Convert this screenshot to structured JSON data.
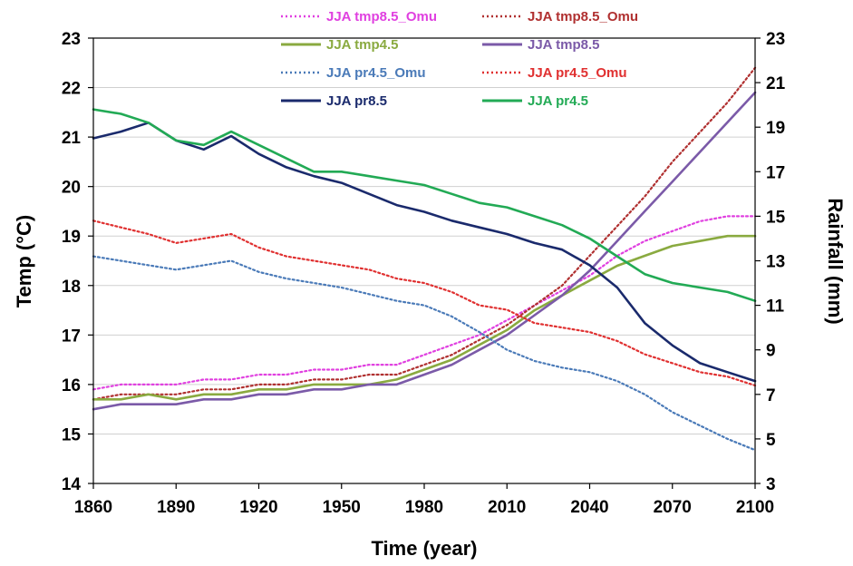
{
  "chart_data": {
    "type": "line",
    "title": "",
    "xlabel": "Time (year)",
    "ylabel_left": "Temp (°C)",
    "ylabel_right": "Rainfall (mm)",
    "xlim": [
      1860,
      2100
    ],
    "ylim_left": [
      14,
      23
    ],
    "ylim_right": [
      3,
      23
    ],
    "x_ticks": [
      1860,
      1890,
      1920,
      1950,
      1980,
      2010,
      2040,
      2070,
      2100
    ],
    "y_ticks_left": [
      14,
      15,
      16,
      17,
      18,
      19,
      20,
      21,
      22,
      23
    ],
    "y_ticks_right": [
      3,
      5,
      7,
      9,
      11,
      13,
      15,
      17,
      19,
      21,
      23
    ],
    "grid": "horizontal",
    "legend_position": "top",
    "x": [
      1860,
      1870,
      1880,
      1890,
      1900,
      1910,
      1920,
      1930,
      1940,
      1950,
      1960,
      1970,
      1980,
      1990,
      2000,
      2010,
      2020,
      2030,
      2040,
      2050,
      2060,
      2070,
      2080,
      2090,
      2100
    ],
    "series": [
      {
        "name": "JJA tmp8.5_Omu",
        "axis": "left",
        "color": "#e040e0",
        "dash": "dotted",
        "values": [
          15.9,
          16.0,
          16.0,
          16.0,
          16.1,
          16.1,
          16.2,
          16.2,
          16.3,
          16.3,
          16.4,
          16.4,
          16.6,
          16.8,
          17.0,
          17.3,
          17.6,
          17.9,
          18.2,
          18.6,
          18.9,
          19.1,
          19.3,
          19.4,
          19.4
        ]
      },
      {
        "name": "JJA tmp8.5_Omu",
        "axis": "left",
        "color": "#b03030",
        "dash": "dotted",
        "values": [
          15.7,
          15.8,
          15.8,
          15.8,
          15.9,
          15.9,
          16.0,
          16.0,
          16.1,
          16.1,
          16.2,
          16.2,
          16.4,
          16.6,
          16.9,
          17.2,
          17.6,
          18.0,
          18.6,
          19.2,
          19.8,
          20.5,
          21.1,
          21.7,
          22.4
        ]
      },
      {
        "name": "JJA tmp4.5",
        "axis": "left",
        "color": "#8aaa40",
        "dash": "solid",
        "values": [
          15.7,
          15.7,
          15.8,
          15.7,
          15.8,
          15.8,
          15.9,
          15.9,
          16.0,
          16.0,
          16.0,
          16.1,
          16.3,
          16.5,
          16.8,
          17.1,
          17.5,
          17.8,
          18.1,
          18.4,
          18.6,
          18.8,
          18.9,
          19.0,
          19.0
        ]
      },
      {
        "name": "JJA tmp8.5",
        "axis": "left",
        "color": "#7b5aa8",
        "dash": "solid",
        "values": [
          15.5,
          15.6,
          15.6,
          15.6,
          15.7,
          15.7,
          15.8,
          15.8,
          15.9,
          15.9,
          16.0,
          16.0,
          16.2,
          16.4,
          16.7,
          17.0,
          17.4,
          17.8,
          18.3,
          18.9,
          19.5,
          20.1,
          20.7,
          21.3,
          21.9
        ]
      },
      {
        "name": "JJA pr4.5_Omu",
        "axis": "right",
        "color": "#4a7ab8",
        "dash": "dotted",
        "values": [
          13.2,
          13.0,
          12.8,
          12.6,
          12.8,
          13.0,
          12.5,
          12.2,
          12.0,
          11.8,
          11.5,
          11.2,
          11.0,
          10.5,
          9.8,
          9.0,
          8.5,
          8.2,
          8.0,
          7.6,
          7.0,
          6.2,
          5.6,
          5.0,
          4.5
        ]
      },
      {
        "name": "JJA pr4.5_Omu",
        "axis": "right",
        "color": "#e03030",
        "dash": "dotted",
        "values": [
          14.8,
          14.5,
          14.2,
          13.8,
          14.0,
          14.2,
          13.6,
          13.2,
          13.0,
          12.8,
          12.6,
          12.2,
          12.0,
          11.6,
          11.0,
          10.8,
          10.2,
          10.0,
          9.8,
          9.4,
          8.8,
          8.4,
          8.0,
          7.8,
          7.4
        ]
      },
      {
        "name": "JJA pr8.5",
        "axis": "right",
        "color": "#1a2a6c",
        "dash": "solid",
        "values": [
          18.5,
          18.8,
          19.2,
          18.4,
          18.0,
          18.6,
          17.8,
          17.2,
          16.8,
          16.5,
          16.0,
          15.5,
          15.2,
          14.8,
          14.5,
          14.2,
          13.8,
          13.5,
          12.8,
          11.8,
          10.2,
          9.2,
          8.4,
          8.0,
          7.6
        ]
      },
      {
        "name": "JJA pr4.5",
        "axis": "right",
        "color": "#22aa55",
        "dash": "solid",
        "values": [
          19.8,
          19.6,
          19.2,
          18.4,
          18.2,
          18.8,
          18.2,
          17.6,
          17.0,
          17.0,
          16.8,
          16.6,
          16.4,
          16.0,
          15.6,
          15.4,
          15.0,
          14.6,
          14.0,
          13.2,
          12.4,
          12.0,
          11.8,
          11.6,
          11.2
        ]
      }
    ]
  }
}
